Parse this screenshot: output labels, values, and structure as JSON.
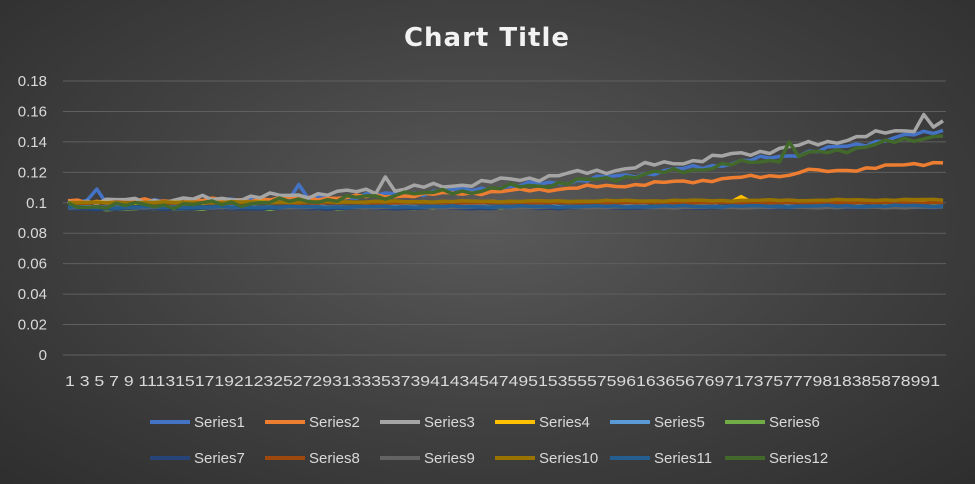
{
  "chart_data": {
    "type": "line",
    "title": "Chart Title",
    "xlabel": "",
    "ylabel": "",
    "ylim": [
      0,
      0.18
    ],
    "y_ticks": [
      "0",
      "0.02",
      "0.04",
      "0.06",
      "0.08",
      "0.1",
      "0.12",
      "0.14",
      "0.16",
      "0.18"
    ],
    "x_tick_labels": "1 3 5 7 9 1113151719212325272931333537394143454749515355575961636567697173757779818385878991",
    "x_count": 92,
    "grid": true,
    "legend_position": "bottom",
    "series": [
      {
        "name": "Series1",
        "color": "#4472c4",
        "start": 0.1,
        "end": 0.148,
        "curve": 2.2,
        "noise": 0.002,
        "spikes": [
          [
            4,
            0.109
          ],
          [
            25,
            0.112
          ]
        ]
      },
      {
        "name": "Series2",
        "color": "#ed7d31",
        "start": 0.101,
        "end": 0.127,
        "curve": 2.0,
        "noise": 0.0015,
        "spikes": [
          [
            78,
            0.122
          ]
        ]
      },
      {
        "name": "Series3",
        "color": "#a5a5a5",
        "start": 0.101,
        "end": 0.152,
        "curve": 1.9,
        "noise": 0.0025,
        "spikes": [
          [
            34,
            0.117
          ],
          [
            90,
            0.158
          ]
        ]
      },
      {
        "name": "Series4",
        "color": "#ffc000",
        "start": 0.1,
        "end": 0.101,
        "curve": 1,
        "noise": 0.0006,
        "spikes": [
          [
            71,
            0.104
          ]
        ]
      },
      {
        "name": "Series5",
        "color": "#5b9bd5",
        "start": 0.097,
        "end": 0.098,
        "curve": 1,
        "noise": 0.0008,
        "spikes": []
      },
      {
        "name": "Series6",
        "color": "#70ad47",
        "start": 0.096,
        "end": 0.098,
        "curve": 1,
        "noise": 0.0008,
        "spikes": []
      },
      {
        "name": "Series7",
        "color": "#264478",
        "start": 0.096,
        "end": 0.097,
        "curve": 1,
        "noise": 0.0005,
        "spikes": []
      },
      {
        "name": "Series8",
        "color": "#9e480e",
        "start": 0.1,
        "end": 0.1,
        "curve": 1,
        "noise": 0.0005,
        "spikes": []
      },
      {
        "name": "Series9",
        "color": "#636363",
        "start": 0.097,
        "end": 0.097,
        "curve": 1,
        "noise": 0.0005,
        "spikes": []
      },
      {
        "name": "Series10",
        "color": "#997300",
        "start": 0.1,
        "end": 0.102,
        "curve": 1,
        "noise": 0.0005,
        "spikes": []
      },
      {
        "name": "Series11",
        "color": "#255e91",
        "start": 0.097,
        "end": 0.098,
        "curve": 1,
        "noise": 0.0006,
        "spikes": []
      },
      {
        "name": "Series12",
        "color": "#43682b",
        "start": 0.098,
        "end": 0.145,
        "curve": 2.0,
        "noise": 0.0025,
        "spikes": [
          [
            36,
            0.107
          ],
          [
            76,
            0.14
          ]
        ]
      }
    ]
  }
}
